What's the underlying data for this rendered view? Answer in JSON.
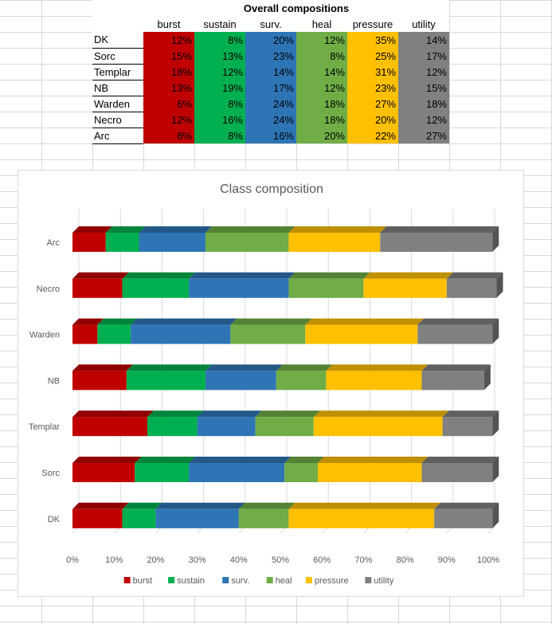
{
  "sheet": {
    "title": "Overall compositions",
    "columns": [
      "burst",
      "sustain",
      "surv.",
      "heal",
      "pressure",
      "utility"
    ],
    "rows": [
      {
        "label": "DK",
        "cells": [
          "12%",
          "8%",
          "20%",
          "12%",
          "35%",
          "14%"
        ]
      },
      {
        "label": "Sorc",
        "cells": [
          "15%",
          "13%",
          "23%",
          "8%",
          "25%",
          "17%"
        ]
      },
      {
        "label": "Templar",
        "cells": [
          "18%",
          "12%",
          "14%",
          "14%",
          "31%",
          "12%"
        ]
      },
      {
        "label": "NB",
        "cells": [
          "13%",
          "19%",
          "17%",
          "12%",
          "23%",
          "15%"
        ]
      },
      {
        "label": "Warden",
        "cells": [
          "6%",
          "8%",
          "24%",
          "18%",
          "27%",
          "18%"
        ]
      },
      {
        "label": "Necro",
        "cells": [
          "12%",
          "16%",
          "24%",
          "18%",
          "20%",
          "12%"
        ]
      },
      {
        "label": "Arc",
        "cells": [
          "8%",
          "8%",
          "16%",
          "20%",
          "22%",
          "27%"
        ]
      }
    ]
  },
  "colors": {
    "burst": "#c00000",
    "sustain": "#00b050",
    "surv.": "#2e75b6",
    "heal": "#70ad47",
    "pressure": "#ffc000",
    "utility": "#808080",
    "axis_text": "#595959",
    "gridline": "#d9d9d9"
  },
  "chart_data": {
    "type": "bar",
    "orientation": "horizontal",
    "stacking": "percent",
    "style": "3d",
    "title": "Class composition",
    "categories": [
      "DK",
      "Sorc",
      "Templar",
      "NB",
      "Warden",
      "Necro",
      "Arc"
    ],
    "series": [
      {
        "name": "burst",
        "values": [
          12,
          15,
          18,
          13,
          6,
          12,
          8
        ]
      },
      {
        "name": "sustain",
        "values": [
          8,
          13,
          12,
          19,
          8,
          16,
          8
        ]
      },
      {
        "name": "surv.",
        "values": [
          20,
          23,
          14,
          17,
          24,
          24,
          16
        ]
      },
      {
        "name": "heal",
        "values": [
          12,
          8,
          14,
          12,
          18,
          18,
          20
        ]
      },
      {
        "name": "pressure",
        "values": [
          35,
          25,
          31,
          23,
          27,
          20,
          22
        ]
      },
      {
        "name": "utility",
        "values": [
          14,
          17,
          12,
          15,
          18,
          12,
          27
        ]
      }
    ],
    "xticks": [
      "0%",
      "10%",
      "20%",
      "30%",
      "40%",
      "50%",
      "60%",
      "70%",
      "80%",
      "90%",
      "100%"
    ],
    "xlim": [
      0,
      100
    ],
    "grid": true,
    "legend": "bottom"
  }
}
